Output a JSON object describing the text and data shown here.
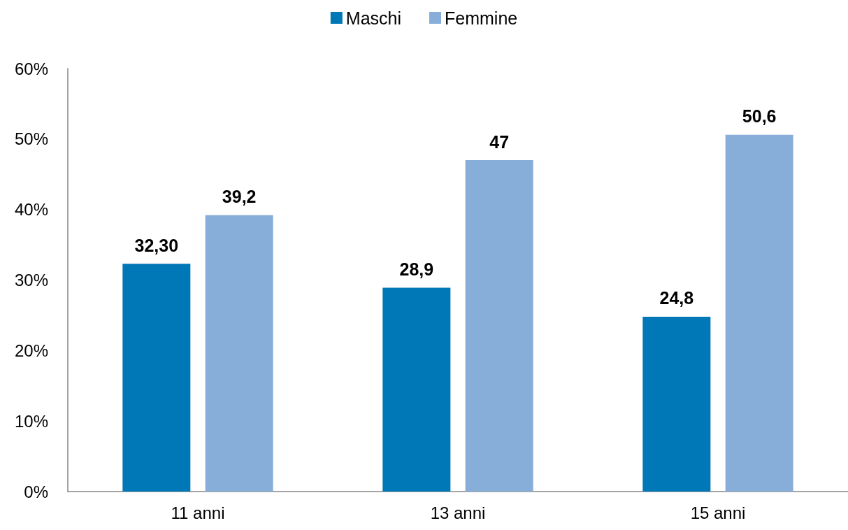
{
  "chart_data": {
    "type": "bar",
    "categories": [
      "11 anni",
      "13 anni",
      "15 anni"
    ],
    "series": [
      {
        "name": "Maschi",
        "color": "#0077b6",
        "values": [
          32.3,
          28.9,
          24.8
        ],
        "value_labels": [
          "32,30",
          "28,9",
          "24,8"
        ]
      },
      {
        "name": "Femmine",
        "color": "#87aed8",
        "values": [
          39.2,
          47,
          50.6
        ],
        "value_labels": [
          "39,2",
          "47",
          "50,6"
        ]
      }
    ],
    "ylim": [
      0,
      60
    ],
    "yticks": [
      {
        "value": 0,
        "label": "0%"
      },
      {
        "value": 10,
        "label": "10%"
      },
      {
        "value": 20,
        "label": "20%"
      },
      {
        "value": 30,
        "label": "30%"
      },
      {
        "value": 40,
        "label": "40%"
      },
      {
        "value": 50,
        "label": "50%"
      },
      {
        "value": 60,
        "label": "60%"
      }
    ],
    "grid": false,
    "legend": "top"
  }
}
